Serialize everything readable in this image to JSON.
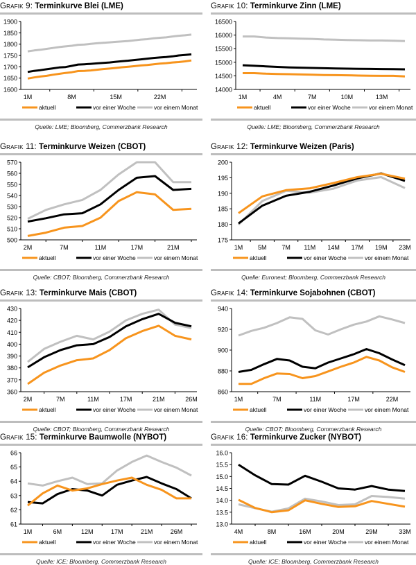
{
  "legend": {
    "labels": [
      "aktuell",
      "vor einer Woche",
      "vor einem Monat"
    ],
    "colors": [
      "#f7941d",
      "#000000",
      "#c0c0c0"
    ]
  },
  "chart_data": [
    {
      "id": "g9",
      "type": "line",
      "prefix": "Grafik 9:",
      "title": "Terminkurve Blei (LME)",
      "source": "Quelle: LME; Bloomberg, Commerzbank Research",
      "ylim": [
        1600,
        1900
      ],
      "yticks": [
        1600,
        1650,
        1700,
        1750,
        1800,
        1850,
        1900
      ],
      "xtick_labels": [
        "1M",
        "8M",
        "15M",
        "22M"
      ],
      "xtick_indices": [
        0,
        7,
        14,
        21
      ],
      "n_points": 27,
      "series": [
        {
          "name": "aktuell",
          "values": [
            1648,
            1653,
            1657,
            1660,
            1665,
            1669,
            1673,
            1676,
            1681,
            1682,
            1684,
            1687,
            1690,
            1692,
            1695,
            1698,
            1700,
            1703,
            1706,
            1708,
            1711,
            1714,
            1716,
            1719,
            1721,
            1724,
            1728
          ]
        },
        {
          "name": "vor einer Woche",
          "values": [
            1677,
            1682,
            1685,
            1689,
            1693,
            1697,
            1699,
            1704,
            1710,
            1711,
            1713,
            1715,
            1717,
            1719,
            1722,
            1725,
            1727,
            1730,
            1733,
            1736,
            1739,
            1741,
            1743,
            1746,
            1750,
            1752,
            1755
          ]
        },
        {
          "name": "vor einem Monat",
          "values": [
            1768,
            1772,
            1775,
            1779,
            1783,
            1787,
            1790,
            1793,
            1797,
            1798,
            1801,
            1804,
            1806,
            1808,
            1810,
            1812,
            1814,
            1817,
            1820,
            1822,
            1826,
            1828,
            1830,
            1834,
            1837,
            1839,
            1842
          ]
        }
      ]
    },
    {
      "id": "g10",
      "type": "line",
      "prefix": "Grafik 10:",
      "title": "Terminkurve Zinn (LME)",
      "source": "Quelle: LME; Bloomberg, Commerzbank Research",
      "ylim": [
        14000,
        16500
      ],
      "yticks": [
        14000,
        14500,
        15000,
        15500,
        16000,
        16500
      ],
      "xtick_labels": [
        "1M",
        "4M",
        "7M",
        "10M",
        "13M"
      ],
      "xtick_indices": [
        0,
        3,
        6,
        9,
        12
      ],
      "n_points": 15,
      "series": [
        {
          "name": "aktuell",
          "values": [
            14600,
            14600,
            14580,
            14570,
            14560,
            14550,
            14540,
            14530,
            14525,
            14520,
            14510,
            14505,
            14500,
            14500,
            14480
          ]
        },
        {
          "name": "vor einer Woche",
          "values": [
            14890,
            14870,
            14850,
            14830,
            14810,
            14800,
            14790,
            14780,
            14770,
            14765,
            14760,
            14755,
            14750,
            14745,
            14740
          ]
        },
        {
          "name": "vor einem Monat",
          "values": [
            15950,
            15950,
            15910,
            15890,
            15880,
            15870,
            15860,
            15840,
            15830,
            15820,
            15810,
            15800,
            15800,
            15790,
            15780
          ]
        }
      ]
    },
    {
      "id": "g11",
      "type": "line",
      "prefix": "Grafik 11:",
      "title": "Terminkurve Weizen (CBOT)",
      "source": "Quelle: CBOT; Bloomberg, Commerzbank Research",
      "ylim": [
        500,
        570
      ],
      "yticks": [
        500,
        510,
        520,
        530,
        540,
        550,
        560,
        570
      ],
      "xtick_labels": [
        "2M",
        "7M",
        "11M",
        "17M",
        "21M"
      ],
      "xtick_indices": [
        0,
        2,
        4,
        6,
        8
      ],
      "n_points": 10,
      "series": [
        {
          "name": "aktuell",
          "values": [
            503.5,
            506.5,
            511,
            512.5,
            520,
            535,
            543,
            541,
            527,
            528
          ]
        },
        {
          "name": "vor einer Woche",
          "values": [
            516.5,
            519.5,
            523,
            524,
            532,
            545,
            556,
            557.5,
            545,
            546
          ]
        },
        {
          "name": "vor einem Monat",
          "values": [
            519,
            527,
            532,
            536,
            545,
            559,
            570,
            570,
            552,
            552
          ]
        }
      ]
    },
    {
      "id": "g12",
      "type": "line",
      "prefix": "Grafik 12:",
      "title": "Terminkurve Weizen (Paris)",
      "source": "Quelle: Euronext; Bloomberg, Commerzbank Research",
      "ylim": [
        175,
        200
      ],
      "yticks": [
        175,
        180,
        185,
        190,
        195,
        200
      ],
      "xtick_labels": [
        "1M",
        "5M",
        "7M",
        "11M",
        "14M",
        "17M",
        "19M",
        "23M"
      ],
      "xtick_indices": [
        0,
        1,
        2,
        3,
        4,
        5,
        6,
        7
      ],
      "n_points": 8,
      "series": [
        {
          "name": "aktuell",
          "values": [
            183.6,
            189,
            191,
            191.6,
            193.3,
            195.2,
            196.3,
            194.7
          ]
        },
        {
          "name": "vor einer Woche",
          "values": [
            180.3,
            186,
            189.2,
            190.5,
            192.5,
            194.8,
            196.4,
            194
          ]
        },
        {
          "name": "vor einem Monat",
          "values": [
            179.9,
            187.5,
            190.8,
            190.2,
            191.5,
            194.1,
            195.2,
            191.7
          ]
        }
      ]
    },
    {
      "id": "g13",
      "type": "line",
      "prefix": "Grafik 13:",
      "title": "Terminkurve Mais (CBOT)",
      "source": "Quelle: CBOT; Bloomberg, Commerzbank Research",
      "ylim": [
        360,
        430
      ],
      "yticks": [
        360,
        370,
        380,
        390,
        400,
        410,
        420,
        430
      ],
      "xtick_labels": [
        "2M",
        "7M",
        "11M",
        "17M",
        "21M",
        "26M"
      ],
      "xtick_indices": [
        0,
        2,
        4,
        6,
        8,
        10
      ],
      "n_points": 11,
      "series": [
        {
          "name": "aktuell",
          "values": [
            366.5,
            376,
            382,
            386.5,
            388,
            395,
            405,
            411,
            415.5,
            407,
            404
          ]
        },
        {
          "name": "vor einer Woche",
          "values": [
            380.5,
            389,
            395,
            399,
            400,
            406,
            415,
            421,
            425.5,
            418,
            415
          ]
        },
        {
          "name": "vor einem Monat",
          "values": [
            385,
            396,
            402,
            407,
            404,
            410.5,
            420,
            425.5,
            429,
            416.5,
            413.5
          ]
        }
      ]
    },
    {
      "id": "g14",
      "type": "line",
      "prefix": "Grafik 14:",
      "title": "Terminkurve Sojabohnen (CBOT)",
      "source": "Quelle: CBOT; Bloomberg, Commerzbank Research",
      "ylim": [
        860,
        940
      ],
      "yticks": [
        860,
        880,
        900,
        920,
        940
      ],
      "xtick_labels": [
        "1M",
        "7M",
        "11M",
        "17M",
        "22M"
      ],
      "xtick_indices": [
        0,
        3,
        6,
        9,
        12
      ],
      "n_points": 14,
      "series": [
        {
          "name": "aktuell",
          "values": [
            867.5,
            867.5,
            873,
            877.5,
            877,
            873,
            875,
            879.5,
            884,
            888,
            893.5,
            890,
            883.5,
            879
          ]
        },
        {
          "name": "vor einer Woche",
          "values": [
            879,
            881,
            886.5,
            891.5,
            890,
            884,
            882.5,
            888,
            892,
            896,
            901,
            897,
            891,
            885.5
          ]
        },
        {
          "name": "vor einem Monat",
          "values": [
            914,
            918.5,
            921.5,
            926,
            931.5,
            930,
            919,
            915,
            920,
            924.5,
            927.5,
            932.5,
            929.5,
            926
          ]
        }
      ]
    },
    {
      "id": "g15",
      "type": "line",
      "prefix": "Grafik 15:",
      "title": "Terminkurve Baumwolle (NYBOT)",
      "source": "Quelle: ICE; Bloomberg, Commerzbank Research",
      "ylim": [
        61,
        66
      ],
      "yticks": [
        61,
        62,
        63,
        64,
        65,
        66
      ],
      "xtick_labels": [
        "1M",
        "6M",
        "12M",
        "17M",
        "21M",
        "26M"
      ],
      "xtick_indices": [
        0,
        2,
        4,
        6,
        8,
        10
      ],
      "n_points": 12,
      "series": [
        {
          "name": "aktuell",
          "values": [
            62.3,
            63.15,
            63.7,
            63.35,
            63.5,
            63.8,
            64.05,
            64.25,
            63.75,
            63.4,
            62.8,
            62.8
          ]
        },
        {
          "name": "vor einer Woche",
          "values": [
            62.55,
            62.45,
            63.1,
            63.45,
            63.35,
            63.0,
            63.75,
            64.05,
            64.3,
            63.85,
            63.45,
            62.8
          ]
        },
        {
          "name": "vor einem Monat",
          "values": [
            63.85,
            63.7,
            64.0,
            64.25,
            63.8,
            63.85,
            64.75,
            65.35,
            65.8,
            65.35,
            64.95,
            64.4
          ]
        }
      ]
    },
    {
      "id": "g16",
      "type": "line",
      "prefix": "Grafik 16:",
      "title": "Terminkurve Zucker (NYBOT)",
      "source": "Quelle: ICE; Bloomberg, Commerzbank Research",
      "ylim": [
        13.0,
        16.0
      ],
      "yticks": [
        13.0,
        13.5,
        14.0,
        14.5,
        15.0,
        15.5,
        16.0
      ],
      "ytick_decimals": 1,
      "xtick_labels": [
        "4M",
        "8M",
        "16M",
        "20M",
        "29M",
        "33M"
      ],
      "xtick_indices": [
        0,
        2,
        4,
        6,
        8,
        10
      ],
      "n_points": 11,
      "series": [
        {
          "name": "aktuell",
          "values": [
            14.02,
            13.68,
            13.5,
            13.58,
            14.0,
            13.85,
            13.72,
            13.75,
            13.97,
            13.85,
            13.73
          ]
        },
        {
          "name": "vor einer Woche",
          "values": [
            15.5,
            15.05,
            14.68,
            14.66,
            15.03,
            14.78,
            14.5,
            14.45,
            14.6,
            14.45,
            14.39
          ]
        },
        {
          "name": "vor einem Monat",
          "values": [
            13.83,
            13.67,
            13.52,
            13.66,
            14.07,
            13.95,
            13.8,
            13.83,
            14.18,
            14.14,
            14.07
          ]
        }
      ]
    }
  ]
}
